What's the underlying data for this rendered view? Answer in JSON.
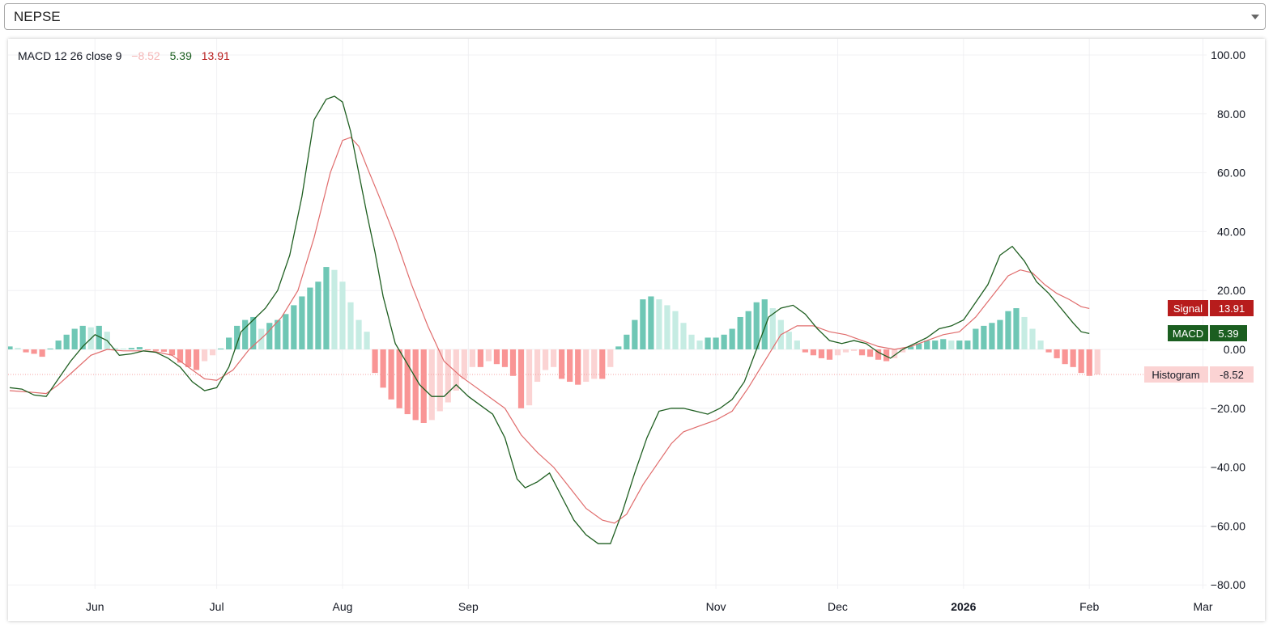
{
  "symbol_select": {
    "value": "NEPSE"
  },
  "legend": {
    "label": "MACD 12 26 close 9",
    "histogram_value": "−8.52",
    "macd_value": "5.39",
    "signal_value": "13.91"
  },
  "price_labels": {
    "signal": {
      "name": "Signal",
      "value": "13.91"
    },
    "macd": {
      "name": "MACD",
      "value": "5.39"
    },
    "histogram": {
      "name": "Histogram",
      "value": "-8.52"
    }
  },
  "colors": {
    "macd_line": "#1e5e20",
    "signal_line": "#e06c6c",
    "hist_pos_strong": "#6fc7b5",
    "hist_pos_weak": "#c6ece3",
    "hist_neg_strong": "#f99595",
    "hist_neg_weak": "#fbd3d3",
    "signal_label_bg": "#b71c1c",
    "macd_label_bg": "#1b5e20",
    "histogram_label_bg": "#fbd3d3",
    "grid": "#f0f0f3"
  },
  "chart_data": {
    "type": "line",
    "title": "",
    "indicator": "MACD 12 26 close 9",
    "ylim": [
      -80,
      100
    ],
    "y_ticks": [
      "100.00",
      "80.00",
      "60.00",
      "40.00",
      "20.00",
      "0.00",
      "−20.00",
      "−40.00",
      "−60.00",
      "−80.00"
    ],
    "y_tick_values": [
      100,
      80,
      60,
      40,
      20,
      0,
      -20,
      -40,
      -60,
      -80
    ],
    "x_ticks": [
      {
        "label": "Jun",
        "day": 21,
        "bold": false
      },
      {
        "label": "Jul",
        "day": 51,
        "bold": false
      },
      {
        "label": "Aug",
        "day": 82,
        "bold": false
      },
      {
        "label": "Sep",
        "day": 113,
        "bold": false
      },
      {
        "label": "Nov",
        "day": 174,
        "bold": false
      },
      {
        "label": "Dec",
        "day": 204,
        "bold": false
      },
      {
        "label": "2026",
        "day": 235,
        "bold": true
      },
      {
        "label": "Feb",
        "day": 266,
        "bold": false
      },
      {
        "label": "Mar",
        "day": 294,
        "bold": false
      }
    ],
    "x_range_days": [
      0,
      307
    ],
    "grid": true,
    "series": [
      {
        "name": "MACD",
        "points": [
          [
            0,
            -13
          ],
          [
            3,
            -13.5
          ],
          [
            6,
            -15.5
          ],
          [
            9,
            -16
          ],
          [
            12,
            -10
          ],
          [
            15,
            -4
          ],
          [
            18,
            1
          ],
          [
            21,
            5
          ],
          [
            24,
            3
          ],
          [
            27,
            -2
          ],
          [
            30,
            -1.5
          ],
          [
            33,
            -0.5
          ],
          [
            36,
            -1
          ],
          [
            39,
            -3
          ],
          [
            42,
            -6
          ],
          [
            45,
            -11
          ],
          [
            48,
            -14
          ],
          [
            51,
            -13
          ],
          [
            54,
            -6
          ],
          [
            57,
            6
          ],
          [
            60,
            10
          ],
          [
            63,
            14
          ],
          [
            66,
            20
          ],
          [
            69,
            32
          ],
          [
            72,
            52
          ],
          [
            75,
            78
          ],
          [
            78,
            85
          ],
          [
            80,
            86
          ],
          [
            82,
            84
          ],
          [
            84,
            74
          ],
          [
            86,
            60
          ],
          [
            88,
            46
          ],
          [
            90,
            33
          ],
          [
            92,
            18
          ],
          [
            95,
            2
          ],
          [
            98,
            -5
          ],
          [
            101,
            -12
          ],
          [
            104,
            -16
          ],
          [
            107,
            -16
          ],
          [
            110,
            -12
          ],
          [
            113,
            -16
          ],
          [
            116,
            -19
          ],
          [
            119,
            -22
          ],
          [
            122,
            -30
          ],
          [
            125,
            -44
          ],
          [
            127,
            -47
          ],
          [
            130,
            -45
          ],
          [
            133,
            -42
          ],
          [
            136,
            -50
          ],
          [
            139,
            -58
          ],
          [
            142,
            -63
          ],
          [
            145,
            -66
          ],
          [
            148,
            -66
          ],
          [
            151,
            -55
          ],
          [
            154,
            -42
          ],
          [
            157,
            -30
          ],
          [
            160,
            -21
          ],
          [
            163,
            -20
          ],
          [
            166,
            -20
          ],
          [
            169,
            -21
          ],
          [
            172,
            -22
          ],
          [
            175,
            -20
          ],
          [
            178,
            -17
          ],
          [
            181,
            -11
          ],
          [
            184,
            0
          ],
          [
            187,
            11
          ],
          [
            190,
            14
          ],
          [
            193,
            15
          ],
          [
            196,
            12
          ],
          [
            199,
            7
          ],
          [
            202,
            3
          ],
          [
            205,
            2
          ],
          [
            208,
            3
          ],
          [
            211,
            2
          ],
          [
            214,
            -1
          ],
          [
            217,
            -3
          ],
          [
            220,
            0
          ],
          [
            223,
            2
          ],
          [
            226,
            4
          ],
          [
            229,
            7
          ],
          [
            232,
            8
          ],
          [
            235,
            10
          ],
          [
            238,
            16
          ],
          [
            241,
            22
          ],
          [
            244,
            32
          ],
          [
            247,
            35
          ],
          [
            250,
            30
          ],
          [
            253,
            23
          ],
          [
            256,
            19
          ],
          [
            259,
            14
          ],
          [
            262,
            9
          ],
          [
            264,
            6
          ],
          [
            266,
            5.39
          ]
        ]
      },
      {
        "name": "Signal",
        "points": [
          [
            0,
            -14
          ],
          [
            5,
            -14.5
          ],
          [
            9,
            -15
          ],
          [
            12,
            -12
          ],
          [
            16,
            -7
          ],
          [
            20,
            -2
          ],
          [
            24,
            0
          ],
          [
            28,
            -0.5
          ],
          [
            32,
            -0.5
          ],
          [
            36,
            -0.8
          ],
          [
            40,
            -2
          ],
          [
            44,
            -6
          ],
          [
            48,
            -10
          ],
          [
            51,
            -10.5
          ],
          [
            55,
            -7
          ],
          [
            59,
            0
          ],
          [
            63,
            5
          ],
          [
            67,
            11
          ],
          [
            71,
            20
          ],
          [
            75,
            38
          ],
          [
            79,
            60
          ],
          [
            82,
            71
          ],
          [
            84,
            72
          ],
          [
            86,
            69
          ],
          [
            88,
            62
          ],
          [
            91,
            52
          ],
          [
            95,
            38
          ],
          [
            99,
            22
          ],
          [
            103,
            8
          ],
          [
            107,
            -4
          ],
          [
            111,
            -9
          ],
          [
            115,
            -13
          ],
          [
            119,
            -17
          ],
          [
            122,
            -20
          ],
          [
            126,
            -29
          ],
          [
            130,
            -35
          ],
          [
            134,
            -40
          ],
          [
            138,
            -47
          ],
          [
            142,
            -54
          ],
          [
            146,
            -58
          ],
          [
            149,
            -59
          ],
          [
            152,
            -56
          ],
          [
            156,
            -46
          ],
          [
            160,
            -38
          ],
          [
            163,
            -32
          ],
          [
            166,
            -28
          ],
          [
            170,
            -26
          ],
          [
            174,
            -24
          ],
          [
            178,
            -21
          ],
          [
            182,
            -13
          ],
          [
            186,
            -4
          ],
          [
            190,
            5
          ],
          [
            194,
            8
          ],
          [
            198,
            8
          ],
          [
            202,
            6
          ],
          [
            206,
            5
          ],
          [
            210,
            3
          ],
          [
            214,
            1
          ],
          [
            218,
            0
          ],
          [
            222,
            1
          ],
          [
            226,
            3
          ],
          [
            230,
            5
          ],
          [
            234,
            6
          ],
          [
            238,
            11
          ],
          [
            242,
            18
          ],
          [
            246,
            25
          ],
          [
            249,
            27
          ],
          [
            252,
            26
          ],
          [
            255,
            22
          ],
          [
            258,
            19
          ],
          [
            261,
            17
          ],
          [
            264,
            14.5
          ],
          [
            266,
            13.91
          ]
        ]
      },
      {
        "name": "Histogram",
        "bars": [
          [
            0,
            1
          ],
          [
            2,
            0.5
          ],
          [
            4,
            -1
          ],
          [
            6,
            -1.5
          ],
          [
            8,
            -2.5
          ],
          [
            10,
            0.3
          ],
          [
            12,
            3
          ],
          [
            14,
            5
          ],
          [
            16,
            7
          ],
          [
            18,
            8
          ],
          [
            20,
            7.5
          ],
          [
            22,
            8
          ],
          [
            24,
            6
          ],
          [
            26,
            0.5
          ],
          [
            28,
            0.3
          ],
          [
            30,
            0.5
          ],
          [
            32,
            0.8
          ],
          [
            34,
            -0.3
          ],
          [
            36,
            -0.5
          ],
          [
            38,
            -0.8
          ],
          [
            40,
            -2
          ],
          [
            42,
            -4.5
          ],
          [
            44,
            -6
          ],
          [
            46,
            -7
          ],
          [
            48,
            -4
          ],
          [
            50,
            -2
          ],
          [
            52,
            0.3
          ],
          [
            54,
            4
          ],
          [
            56,
            8
          ],
          [
            58,
            10
          ],
          [
            60,
            11
          ],
          [
            62,
            7
          ],
          [
            64,
            9
          ],
          [
            66,
            10
          ],
          [
            68,
            12
          ],
          [
            70,
            15
          ],
          [
            72,
            18
          ],
          [
            74,
            21
          ],
          [
            76,
            23
          ],
          [
            78,
            28
          ],
          [
            80,
            27
          ],
          [
            82,
            23
          ],
          [
            84,
            16
          ],
          [
            86,
            10
          ],
          [
            88,
            6
          ],
          [
            90,
            -8
          ],
          [
            92,
            -13
          ],
          [
            94,
            -17
          ],
          [
            96,
            -20
          ],
          [
            98,
            -22
          ],
          [
            100,
            -24
          ],
          [
            102,
            -25
          ],
          [
            104,
            -24
          ],
          [
            106,
            -21
          ],
          [
            108,
            -18
          ],
          [
            110,
            -14
          ],
          [
            112,
            -10
          ],
          [
            114,
            -6
          ],
          [
            116,
            -6
          ],
          [
            118,
            -4
          ],
          [
            120,
            -5
          ],
          [
            122,
            -6
          ],
          [
            124,
            -9
          ],
          [
            126,
            -20
          ],
          [
            128,
            -19
          ],
          [
            130,
            -11
          ],
          [
            132,
            -7
          ],
          [
            134,
            -6
          ],
          [
            136,
            -10
          ],
          [
            138,
            -11
          ],
          [
            140,
            -12
          ],
          [
            142,
            -11
          ],
          [
            144,
            -10
          ],
          [
            146,
            -10
          ],
          [
            148,
            -6
          ],
          [
            150,
            1
          ],
          [
            152,
            5
          ],
          [
            154,
            10
          ],
          [
            156,
            17
          ],
          [
            158,
            18
          ],
          [
            160,
            17
          ],
          [
            162,
            15
          ],
          [
            164,
            13
          ],
          [
            166,
            9
          ],
          [
            168,
            5
          ],
          [
            170,
            3
          ],
          [
            172,
            4
          ],
          [
            174,
            4
          ],
          [
            176,
            5
          ],
          [
            178,
            7
          ],
          [
            180,
            11
          ],
          [
            182,
            13
          ],
          [
            184,
            16
          ],
          [
            186,
            17
          ],
          [
            188,
            14
          ],
          [
            190,
            10
          ],
          [
            192,
            6
          ],
          [
            194,
            3
          ],
          [
            196,
            -1
          ],
          [
            198,
            -2
          ],
          [
            200,
            -3
          ],
          [
            202,
            -3.5
          ],
          [
            204,
            -2
          ],
          [
            206,
            -1
          ],
          [
            208,
            -0.5
          ],
          [
            210,
            -2
          ],
          [
            212,
            -2.5
          ],
          [
            214,
            -3.5
          ],
          [
            216,
            -4
          ],
          [
            218,
            -3
          ],
          [
            220,
            -1
          ],
          [
            222,
            1
          ],
          [
            224,
            2
          ],
          [
            226,
            3
          ],
          [
            228,
            3
          ],
          [
            230,
            3.5
          ],
          [
            232,
            3
          ],
          [
            234,
            3
          ],
          [
            236,
            3
          ],
          [
            238,
            7
          ],
          [
            240,
            8
          ],
          [
            242,
            9
          ],
          [
            244,
            10
          ],
          [
            246,
            13
          ],
          [
            248,
            14
          ],
          [
            250,
            11
          ],
          [
            252,
            7
          ],
          [
            254,
            3
          ],
          [
            256,
            -1
          ],
          [
            258,
            -3
          ],
          [
            260,
            -5
          ],
          [
            262,
            -6
          ],
          [
            264,
            -8
          ],
          [
            266,
            -9
          ],
          [
            268,
            -8.52
          ]
        ]
      }
    ]
  }
}
